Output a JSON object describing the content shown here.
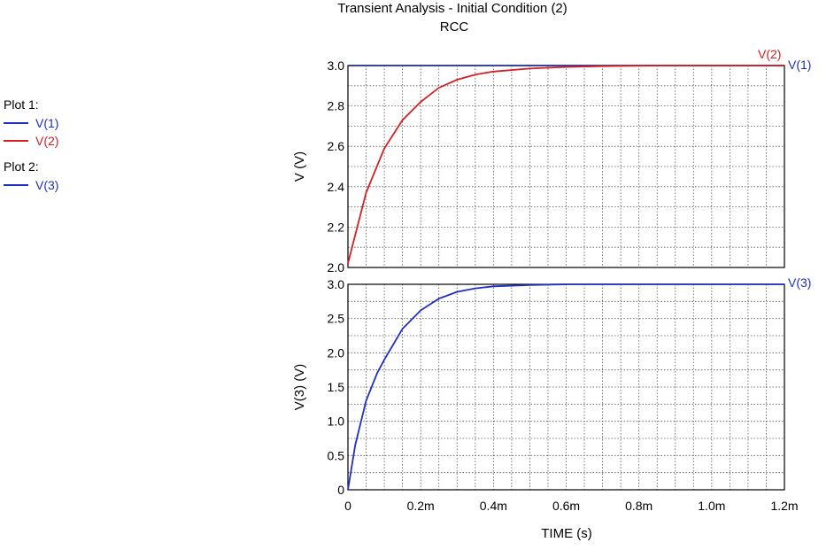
{
  "title": "Transient Analysis - Initial Condition (2)",
  "subtitle": "RCC",
  "legend": {
    "groups": [
      {
        "title": "Plot 1:",
        "items": [
          {
            "label": "V(1)",
            "color": "#1f2fbf"
          },
          {
            "label": "V(2)",
            "color": "#d42020"
          }
        ]
      },
      {
        "title": "Plot 2:",
        "items": [
          {
            "label": "V(3)",
            "color": "#1f2fbf"
          }
        ]
      }
    ]
  },
  "chart_data": [
    {
      "type": "line",
      "ylabel": "V  (V)",
      "xlim": [
        0,
        1.2
      ],
      "ylim": [
        2.0,
        3.0
      ],
      "yticks": [
        2.0,
        2.2,
        2.4,
        2.6,
        2.8,
        3.0
      ],
      "ytick_labels": [
        "2.0",
        "2.2",
        "2.4",
        "2.6",
        "2.8",
        "3.0"
      ],
      "grid": true,
      "x": [
        0,
        0.05,
        0.1,
        0.15,
        0.2,
        0.25,
        0.3,
        0.35,
        0.4,
        0.5,
        0.6,
        0.7,
        0.8,
        0.9,
        1.0,
        1.1,
        1.2
      ],
      "series": [
        {
          "name": "V(1)",
          "color": "#1f2fbf",
          "label_end": true,
          "values": [
            3.0,
            3.0,
            3.0,
            3.0,
            3.0,
            3.0,
            3.0,
            3.0,
            3.0,
            3.0,
            3.0,
            3.0,
            3.0,
            3.0,
            3.0,
            3.0,
            3.0
          ]
        },
        {
          "name": "V(2)",
          "color": "#d42020",
          "label_end": true,
          "values": [
            2.02,
            2.37,
            2.59,
            2.73,
            2.82,
            2.89,
            2.93,
            2.955,
            2.97,
            2.985,
            2.993,
            2.997,
            2.999,
            3.0,
            3.0,
            3.0,
            3.0
          ]
        }
      ]
    },
    {
      "type": "line",
      "ylabel": "V(3)  (V)",
      "xlabel": "TIME  (s)",
      "xlim": [
        0,
        1.2
      ],
      "ylim": [
        0,
        3.0
      ],
      "yticks": [
        0,
        0.5,
        1.0,
        1.5,
        2.0,
        2.5,
        3.0
      ],
      "ytick_labels": [
        "0",
        "0.5",
        "1.0",
        "1.5",
        "2.0",
        "2.5",
        "3.0"
      ],
      "xticks": [
        0,
        0.2,
        0.4,
        0.6,
        0.8,
        1.0,
        1.2
      ],
      "xtick_labels": [
        "0",
        "0.2m",
        "0.4m",
        "0.6m",
        "0.8m",
        "1.0m",
        "1.2m"
      ],
      "grid": true,
      "x": [
        0,
        0.02,
        0.05,
        0.08,
        0.1,
        0.15,
        0.2,
        0.25,
        0.3,
        0.35,
        0.4,
        0.5,
        0.6,
        0.7,
        0.8,
        1.0,
        1.2
      ],
      "series": [
        {
          "name": "V(3)",
          "color": "#1f2fbf",
          "label_end": true,
          "values": [
            0,
            0.65,
            1.3,
            1.7,
            1.9,
            2.35,
            2.62,
            2.79,
            2.89,
            2.94,
            2.97,
            2.99,
            3.0,
            3.0,
            3.0,
            3.0,
            3.0
          ]
        }
      ]
    }
  ]
}
